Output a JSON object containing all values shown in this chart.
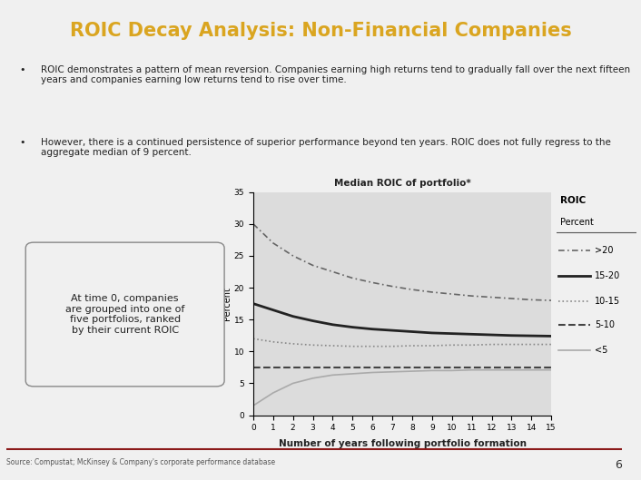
{
  "title": "ROIC Decay Analysis: Non-Financial Companies",
  "title_bg": "#8B1A1A",
  "title_color": "#DAA520",
  "slide_bg": "#F0F0F0",
  "bullet1": "ROIC demonstrates a pattern of mean reversion. Companies earning high returns tend to gradually fall over the next fifteen years and companies earning low returns tend to rise over time.",
  "bullet2": "However, there is a continued persistence of superior performance beyond ten years. ROIC does not fully regress to the aggregate median of 9 percent.",
  "chart_title": "Median ROIC of portfolio*",
  "xlabel": "Number of years following portfolio formation",
  "ylabel": "Percent",
  "source": "Source: Compustat; McKinsey & Company's corporate performance database",
  "page_number": "6",
  "box_text": "At time 0, companies\nare grouped into one of\nfive portfolios, ranked\nby their current ROIC",
  "legend_labels": [
    ">20",
    "15-20",
    "10-15",
    "5-10",
    "<5"
  ],
  "x": [
    0,
    1,
    2,
    3,
    4,
    5,
    6,
    7,
    8,
    9,
    10,
    11,
    12,
    13,
    14,
    15
  ],
  "series_gt20": [
    30,
    27,
    25,
    23.5,
    22.5,
    21.5,
    20.8,
    20.2,
    19.7,
    19.3,
    19.0,
    18.7,
    18.5,
    18.3,
    18.1,
    18.0
  ],
  "series_15_20": [
    17.5,
    16.5,
    15.5,
    14.8,
    14.2,
    13.8,
    13.5,
    13.3,
    13.1,
    12.9,
    12.8,
    12.7,
    12.6,
    12.5,
    12.45,
    12.4
  ],
  "series_10_15": [
    12.0,
    11.5,
    11.2,
    11.0,
    10.9,
    10.8,
    10.8,
    10.8,
    10.9,
    10.9,
    11.0,
    11.0,
    11.1,
    11.1,
    11.1,
    11.1
  ],
  "series_5_10": [
    7.5,
    7.5,
    7.5,
    7.5,
    7.5,
    7.5,
    7.5,
    7.5,
    7.5,
    7.5,
    7.5,
    7.5,
    7.5,
    7.5,
    7.5,
    7.5
  ],
  "series_lt5": [
    1.5,
    3.5,
    5.0,
    5.8,
    6.3,
    6.5,
    6.7,
    6.8,
    6.9,
    7.0,
    7.0,
    7.1,
    7.1,
    7.1,
    7.1,
    7.1
  ],
  "ylim": [
    0,
    35
  ],
  "yticks": [
    0,
    5,
    10,
    15,
    20,
    25,
    30,
    35
  ],
  "chart_bg": "#DCDCDC"
}
